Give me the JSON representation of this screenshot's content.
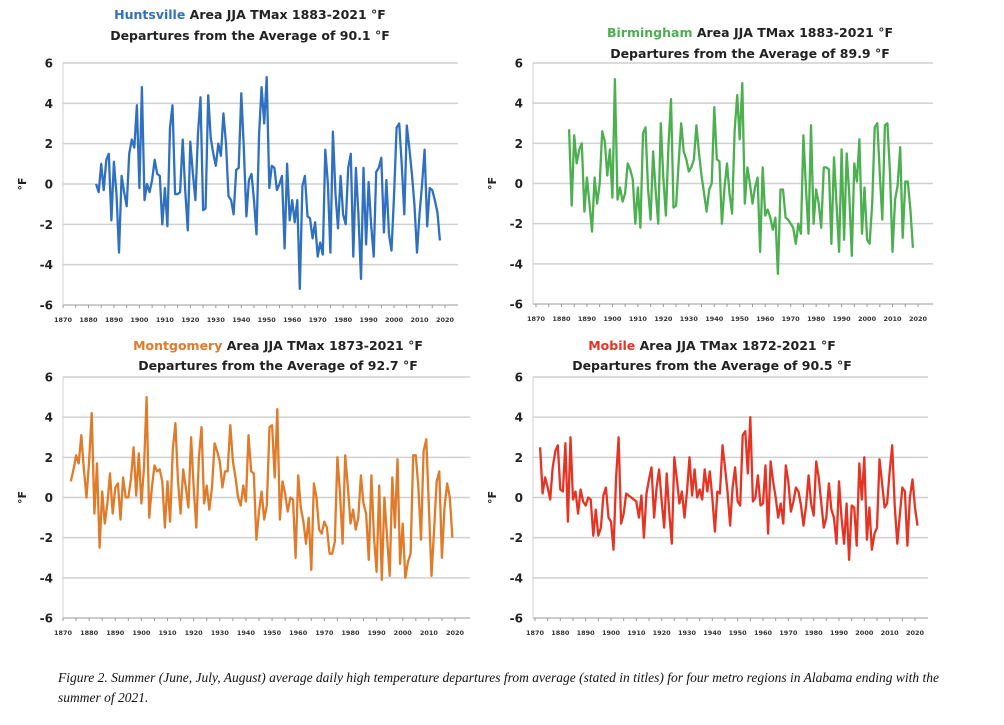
{
  "caption": "Figure 2.  Summer (June, July, August) average daily high temperature departures from average (stated in titles) for four metro regions in Alabama ending with the summer of 2021.",
  "chart_data": [
    {
      "type": "line",
      "city": "Huntsville",
      "title_rest": " Area JJA TMax 1883-2021  °F",
      "subtitle": "Departures from the Average of 90.1 °F",
      "ylabel": "°F",
      "color": "#3070c0",
      "ylim": [
        -6,
        6
      ],
      "xlim": [
        1870,
        2020
      ],
      "yticks": [
        "6",
        "4",
        "2",
        "0",
        "-2",
        "-4",
        "-6"
      ],
      "xticks": [
        "1870",
        "1880",
        "1890",
        "1900",
        "1910",
        "1920",
        "1930",
        "1940",
        "1950",
        "1960",
        "1970",
        "1980",
        "1990",
        "2000",
        "2010",
        "2020"
      ],
      "grid": true,
      "x_start": 1883,
      "values": [
        0,
        -0.4,
        1.0,
        -0.3,
        1.2,
        1.5,
        -1.8,
        1.1,
        -0.5,
        -3.4,
        0.4,
        -0.4,
        -1.1,
        1.5,
        2.2,
        1.8,
        3.9,
        -0.2,
        4.8,
        -0.8,
        0,
        -0.4,
        0.2,
        1.2,
        0.5,
        0.4,
        -2.0,
        -0.2,
        -2.1,
        2.8,
        3.9,
        -0.5,
        -0.5,
        -0.4,
        2.2,
        -0.3,
        -2.3,
        2.1,
        0.5,
        -0.8,
        2.5,
        4.3,
        -1.3,
        -1.2,
        4.4,
        2.3,
        1.5,
        0.9,
        2.0,
        1.4,
        3.5,
        2.0,
        -0.6,
        -0.8,
        -1.5,
        0.7,
        0.8,
        4.5,
        1.8,
        -1.6,
        0.2,
        0.5,
        -0.8,
        -2.5,
        2.5,
        4.8,
        3.0,
        5.3,
        -0.2,
        0.9,
        0.8,
        -0.3,
        0,
        0.4,
        -3.2,
        1.0,
        -1.8,
        -0.8,
        -1.9,
        -0.8,
        -5.2,
        -0.1,
        0.4,
        -1.6,
        -1.7,
        -2.7,
        -1.9,
        -3.6,
        -2.9,
        -3.5,
        1.7,
        0,
        -3.4,
        2.6,
        -0.5,
        -2.2,
        0.4,
        -1.5,
        -2.0,
        0.8,
        1.5,
        -3.6,
        0.8,
        -1.5,
        -4.7,
        0.8,
        -3.0,
        0.1,
        -2.0,
        -3.6,
        0.6,
        0.8,
        1.3,
        -2.4,
        0.2,
        -2.5,
        -3.3,
        -0.5,
        2.8,
        3.0,
        1.0,
        -1.5,
        2.9,
        1.8,
        0.5,
        -1.0,
        -3.4,
        -1.5,
        0,
        1.7,
        -2.1,
        -0.2,
        -0.3,
        -0.8,
        -1.4,
        -2.8
      ]
    },
    {
      "type": "line",
      "city": "Birmingham",
      "title_rest": " Area JJA TMax 1883-2021  °F",
      "subtitle": "Departures from the Average of 89.9 °F",
      "ylabel": "°F",
      "color": "#4caf50",
      "ylim": [
        -6,
        6
      ],
      "xlim": [
        1870,
        2020
      ],
      "yticks": [
        "6",
        "4",
        "2",
        "0",
        "-2",
        "-4",
        "-6"
      ],
      "xticks": [
        "1870",
        "1880",
        "1890",
        "1900",
        "1910",
        "1920",
        "1930",
        "1940",
        "1950",
        "1960",
        "1970",
        "1980",
        "1990",
        "2000",
        "2010",
        "2020"
      ],
      "grid": true,
      "x_start": 1883,
      "values": [
        2.7,
        -1.1,
        2.4,
        1.0,
        1.7,
        2.0,
        -1.4,
        0.3,
        -1.0,
        -2.4,
        0.3,
        -1.0,
        0,
        2.6,
        2.1,
        0.4,
        1.7,
        -0.7,
        5.2,
        -0.8,
        -0.2,
        -0.9,
        -0.5,
        1.0,
        0.7,
        0.2,
        -2.0,
        -0.2,
        -2.2,
        2.5,
        2.8,
        -0.3,
        -1.8,
        1.6,
        -0.4,
        -2.0,
        3.0,
        0.3,
        -1.6,
        1.8,
        4.2,
        -1.2,
        -1.1,
        1.0,
        3.0,
        1.6,
        1.2,
        0.6,
        0.8,
        1.2,
        2.9,
        1.5,
        0.4,
        -0.5,
        -1.4,
        -0.3,
        0,
        3.8,
        1.2,
        1.1,
        -2.0,
        -0.2,
        1.0,
        -0.5,
        -1.5,
        2.6,
        4.4,
        2.2,
        5.0,
        -1.0,
        0.8,
        0,
        -1.0,
        -0.2,
        0.3,
        -3.4,
        0.8,
        -1.6,
        -1.3,
        -1.7,
        -2.3,
        -1.7,
        -4.5,
        -0.3,
        -0.3,
        -1.7,
        -1.8,
        -2.0,
        -2.2,
        -3.0,
        -2.0,
        -2.5,
        2.4,
        -0.2,
        -2.5,
        2.9,
        -2.0,
        -0.3,
        -1.0,
        -2.2,
        0.8,
        0.8,
        0.7,
        -3.0,
        1.3,
        -1.0,
        -3.4,
        1.7,
        -2.8,
        1.5,
        -0.5,
        -3.6,
        1.0,
        0.1,
        2.2,
        -2.5,
        -0.2,
        -2.8,
        -3.0,
        -1.0,
        2.8,
        3.0,
        0.5,
        -1.8,
        2.9,
        3.0,
        0.5,
        -3.4,
        -0.8,
        -0.1,
        1.8,
        -2.7,
        0.1,
        0.1,
        -1.3,
        -3.2
      ]
    },
    {
      "type": "line",
      "city": "Montgomery",
      "title_rest": " Area JJA TMax 1873-2021  °F",
      "subtitle": "Departures from the Average of 92.7 °F",
      "ylabel": "°F",
      "color": "#e07b2a",
      "ylim": [
        -6,
        6
      ],
      "xlim": [
        1870,
        2020
      ],
      "yticks": [
        "6",
        "4",
        "2",
        "0",
        "-2",
        "-4",
        "-6"
      ],
      "xticks": [
        "1870",
        "1880",
        "1890",
        "1900",
        "1910",
        "1920",
        "1930",
        "1940",
        "1950",
        "1960",
        "1970",
        "1980",
        "1990",
        "2000",
        "2010",
        "2020"
      ],
      "grid": true,
      "x_start": 1873,
      "values": [
        0.8,
        1.4,
        2.1,
        1.7,
        3.1,
        1.4,
        0,
        1.8,
        4.2,
        -0.8,
        1.7,
        -2.5,
        0.3,
        -1.3,
        -0.3,
        1.2,
        -0.8,
        0.5,
        0.7,
        -1.1,
        1.0,
        0,
        0,
        0.9,
        2.5,
        0.1,
        2.2,
        -0.3,
        1.5,
        5.0,
        -1.0,
        0.5,
        1.6,
        1.3,
        1.4,
        0.8,
        -1.5,
        0.8,
        -1.2,
        2.4,
        3.7,
        0.8,
        -0.8,
        1.4,
        0.5,
        -0.5,
        3.0,
        0.5,
        -1.5,
        2.0,
        3.5,
        -0.3,
        0.6,
        -0.6,
        0.5,
        2.7,
        2.3,
        1.8,
        0.5,
        1.3,
        1.3,
        3.6,
        1.8,
        1.0,
        0,
        -0.4,
        0.6,
        -0.2,
        3.1,
        1.3,
        1.2,
        -2.1,
        -0.7,
        0.3,
        -1.1,
        -0.4,
        3.5,
        3.6,
        1.0,
        4.4,
        -1.1,
        0.8,
        0.2,
        -0.7,
        0,
        -0.1,
        -3.0,
        1.1,
        -0.5,
        -1.2,
        -2.3,
        -1.0,
        -3.6,
        0.7,
        0,
        -1.6,
        -1.8,
        -1.2,
        -1.5,
        -2.8,
        -2.8,
        -2.2,
        2.0,
        0.2,
        -2.3,
        2.1,
        0.5,
        -1.3,
        -0.6,
        -1.6,
        -1.0,
        1.1,
        -0.3,
        -0.8,
        -3.1,
        1.1,
        -2.0,
        -3.7,
        0.6,
        -4.1,
        0,
        -2.0,
        -3.9,
        1.0,
        -1.5,
        1.9,
        -3.3,
        -1.3,
        -4.0,
        -3.2,
        -2.8,
        2.1,
        2.1,
        0.5,
        -2.1,
        2.3,
        2.9,
        -0.5,
        -3.9,
        -1.6,
        0.8,
        1.3,
        -3.0,
        -0.5,
        0.7,
        0,
        -2.0
      ]
    },
    {
      "type": "line",
      "city": "Mobile",
      "title_rest": " Area JJA TMax 1872-2021  °F",
      "subtitle": "Departures from the Average of 90.5 °F",
      "ylabel": "°F",
      "color": "#e53424",
      "ylim": [
        -6,
        6
      ],
      "xlim": [
        1870,
        2020
      ],
      "yticks": [
        "6",
        "4",
        "2",
        "0",
        "-2",
        "-4",
        "-6"
      ],
      "xticks": [
        "1870",
        "1880",
        "1890",
        "1900",
        "1910",
        "1920",
        "1930",
        "1940",
        "1950",
        "1960",
        "1970",
        "1980",
        "1990",
        "2000",
        "2010",
        "2020"
      ],
      "grid": true,
      "x_start": 1872,
      "values": [
        2.5,
        0.2,
        1.0,
        0.5,
        -0.1,
        1.5,
        2.3,
        2.6,
        0.4,
        0.3,
        2.7,
        -1.2,
        3.0,
        -0.1,
        0.3,
        -0.8,
        0.4,
        -0.2,
        -0.4,
        0,
        -0.1,
        -1.9,
        -0.6,
        -1.9,
        -1.5,
        0.1,
        0.5,
        -1.0,
        -1.2,
        -2.6,
        1.0,
        3.0,
        -1.3,
        -0.8,
        0.2,
        0.1,
        0,
        -0.1,
        -0.2,
        -1.0,
        0.1,
        -2.0,
        0.2,
        0.9,
        1.5,
        -1.0,
        0.5,
        1.4,
        -0.2,
        -1.5,
        1.2,
        -0.8,
        -2.3,
        2.0,
        0.9,
        -0.3,
        0.3,
        -1.0,
        0.3,
        2.0,
        0.1,
        1.4,
        0,
        0.4,
        -0.1,
        1.4,
        0.3,
        1.3,
        0,
        -1.7,
        0.3,
        0.2,
        2.6,
        1.5,
        0.3,
        -1.4,
        0.5,
        1.5,
        -0.2,
        -0.4,
        3.1,
        3.3,
        1.2,
        4.0,
        -0.2,
        0,
        1.1,
        -0.4,
        -0.3,
        1.6,
        -1.8,
        1.8,
        0.8,
        0,
        -1.0,
        -0.3,
        -1.3,
        1.6,
        0.8,
        -0.7,
        -0.2,
        0.5,
        0.3,
        -0.4,
        -1.4,
        -0.4,
        1.1,
        -0.3,
        -0.9,
        1.8,
        1.0,
        -0.3,
        -1.5,
        -1.0,
        0.7,
        -0.6,
        -1.0,
        -2.3,
        0.8,
        -1.0,
        -2.3,
        -0.3,
        -3.1,
        -0.4,
        -0.5,
        -2.4,
        1.7,
        -0.1,
        2.0,
        -2.1,
        -0.5,
        -2.6,
        -1.8,
        -1.5,
        1.9,
        0.7,
        -0.5,
        -0.3,
        1.3,
        2.6,
        -0.4,
        -2.3,
        -0.9,
        0.5,
        0.3,
        -2.4,
        0,
        0.9,
        -0.5,
        -1.4
      ]
    }
  ]
}
